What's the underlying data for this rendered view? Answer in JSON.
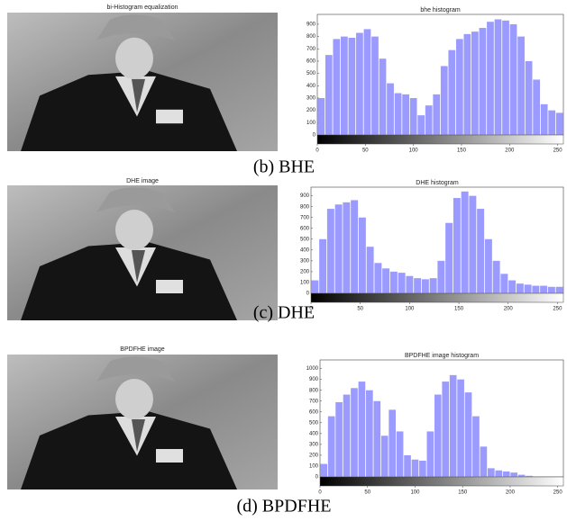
{
  "panels": [
    {
      "image_title": "bi-Histogram equalization",
      "caption": "(b) BHE"
    },
    {
      "image_title": "DHE image",
      "caption": "(c) DHE"
    },
    {
      "image_title": "BPDFHE image",
      "caption": "(d) BPDFHE"
    }
  ],
  "chart_data": [
    {
      "type": "histogram",
      "title": "bhe histogram",
      "color": "#9a9aff",
      "bins": [
        0,
        8,
        16,
        24,
        32,
        40,
        48,
        56,
        64,
        72,
        80,
        88,
        96,
        104,
        112,
        120,
        128,
        136,
        144,
        152,
        160,
        168,
        176,
        184,
        192,
        200,
        208,
        216,
        224,
        232,
        240,
        248,
        256
      ],
      "values": [
        300,
        650,
        780,
        800,
        790,
        830,
        860,
        800,
        620,
        420,
        340,
        330,
        300,
        160,
        240,
        330,
        560,
        690,
        780,
        820,
        840,
        870,
        920,
        940,
        930,
        900,
        800,
        600,
        450,
        250,
        200,
        180
      ],
      "xlim": [
        0,
        256
      ],
      "xticks": [
        0,
        50,
        100,
        150,
        200,
        250
      ],
      "ylim": [
        0,
        980
      ],
      "yticks": [
        0,
        100,
        200,
        300,
        400,
        500,
        600,
        700,
        800,
        900
      ]
    },
    {
      "type": "histogram",
      "title": "DHE histogram",
      "color": "#9a9aff",
      "bins": [
        0,
        8,
        16,
        24,
        32,
        40,
        48,
        56,
        64,
        72,
        80,
        88,
        96,
        104,
        112,
        120,
        128,
        136,
        144,
        152,
        160,
        168,
        176,
        184,
        192,
        200,
        208,
        216,
        224,
        232,
        240,
        248,
        256
      ],
      "values": [
        120,
        500,
        780,
        820,
        840,
        860,
        700,
        430,
        280,
        230,
        200,
        190,
        160,
        140,
        130,
        140,
        300,
        650,
        880,
        940,
        900,
        780,
        500,
        300,
        180,
        120,
        90,
        80,
        70,
        70,
        60,
        60
      ],
      "xlim": [
        0,
        256
      ],
      "xticks": [
        0,
        50,
        100,
        150,
        200,
        250
      ],
      "ylim": [
        0,
        980
      ],
      "yticks": [
        0,
        100,
        200,
        300,
        400,
        500,
        600,
        700,
        800,
        900
      ]
    },
    {
      "type": "histogram",
      "title": "BPDFHE image histogram",
      "color": "#9a9aff",
      "bins": [
        0,
        8,
        16,
        24,
        32,
        40,
        48,
        56,
        64,
        72,
        80,
        88,
        96,
        104,
        112,
        120,
        128,
        136,
        144,
        152,
        160,
        168,
        176,
        184,
        192,
        200,
        208,
        216,
        224,
        232,
        240,
        248,
        256
      ],
      "values": [
        120,
        560,
        690,
        760,
        820,
        880,
        800,
        700,
        380,
        620,
        420,
        200,
        160,
        150,
        420,
        760,
        880,
        940,
        900,
        780,
        560,
        280,
        80,
        60,
        50,
        40,
        20,
        10,
        0,
        0,
        0,
        0
      ],
      "xlim": [
        0,
        256
      ],
      "xticks": [
        0,
        50,
        100,
        150,
        200,
        250
      ],
      "ylim": [
        0,
        1080
      ],
      "yticks": [
        0,
        100,
        200,
        300,
        400,
        500,
        600,
        700,
        800,
        900,
        1000
      ]
    }
  ]
}
